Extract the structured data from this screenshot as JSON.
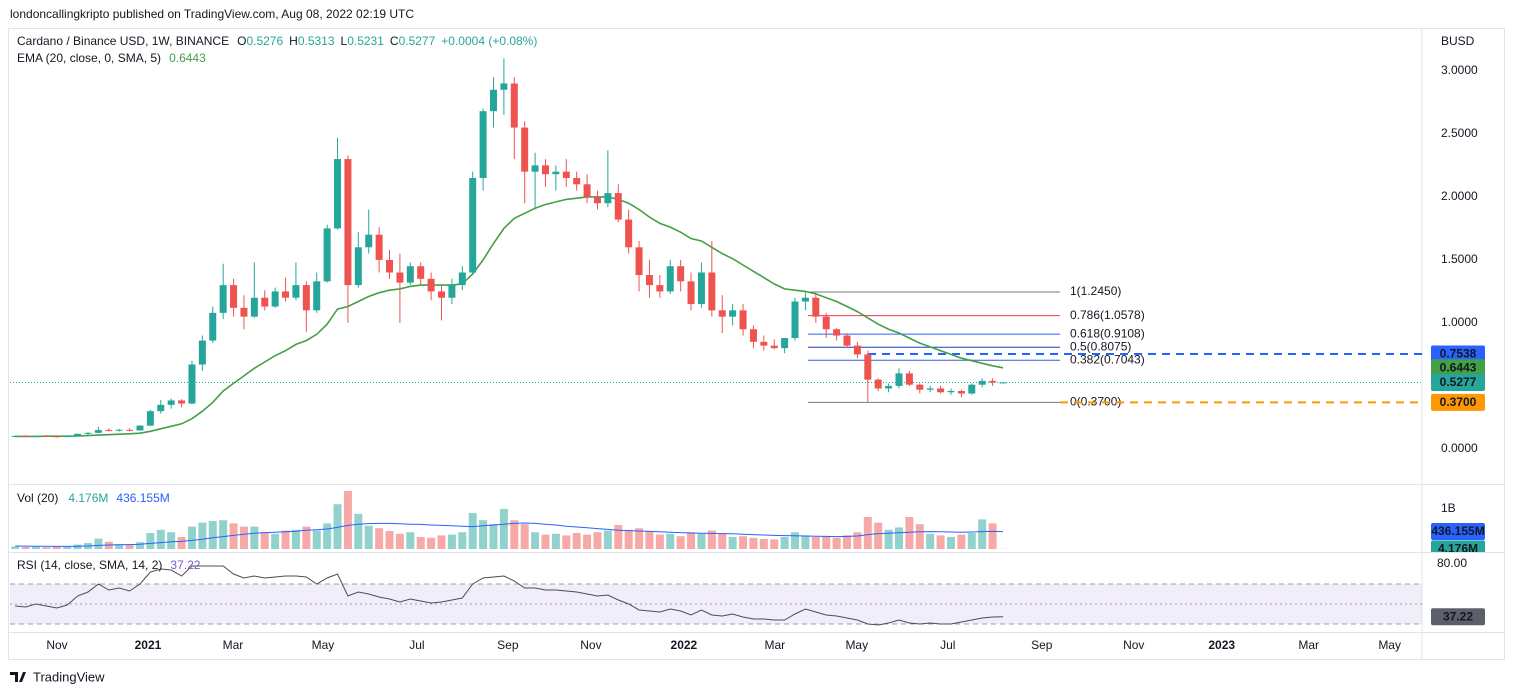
{
  "header": "londoncallingkripto published on TradingView.com, Aug 08, 2022 02:19 UTC",
  "footer": "TradingView",
  "chart_data": {
    "type": "candlestick",
    "legend": {
      "symbol": "Cardano / Binance USD, 1W, BINANCE"
    },
    "ohlc_prefixes": [
      "O",
      "H",
      "L",
      "C"
    ],
    "change": {
      "value": 0.0004,
      "label": "+0.0004 (+0.08%)"
    },
    "currency": "BUSD",
    "up_color": "#26a69a",
    "down_color": "#ef5350",
    "xlim": [
      -0.5,
      135.3
    ],
    "xticks": [
      {
        "value": 4.02,
        "label": "Nov"
      },
      {
        "value": 12.77,
        "label": "2021"
      },
      {
        "value": 20.94,
        "label": "Mar"
      },
      {
        "value": 29.6,
        "label": "May"
      },
      {
        "value": 38.63,
        "label": "Jul"
      },
      {
        "value": 47.38,
        "label": "Sep"
      },
      {
        "value": 55.37,
        "label": "Nov"
      },
      {
        "value": 64.31,
        "label": "2022"
      },
      {
        "value": 73.06,
        "label": "Mar"
      },
      {
        "value": 80.94,
        "label": "May"
      },
      {
        "value": 89.69,
        "label": "Jul"
      },
      {
        "value": 98.73,
        "label": "Sep"
      },
      {
        "value": 107.58,
        "label": "Nov"
      },
      {
        "value": 116.04,
        "label": "2023"
      },
      {
        "value": 124.4,
        "label": "Mar"
      },
      {
        "value": 132.19,
        "label": "May"
      }
    ],
    "ylim": [
      -0.27,
      3.34
    ],
    "yticks": [
      {
        "value": 0,
        "label": "0.0000"
      },
      {
        "value": 1,
        "label": "1.0000"
      },
      {
        "value": 1.5,
        "label": "1.5000"
      },
      {
        "value": 2,
        "label": "2.0000"
      },
      {
        "value": 2.5,
        "label": "2.5000"
      },
      {
        "value": 3,
        "label": "3.0000"
      }
    ],
    "ohlc": [
      [
        0.1,
        0.108,
        0.094,
        0.103
      ],
      [
        0.103,
        0.11,
        0.098,
        0.1
      ],
      [
        0.1,
        0.107,
        0.096,
        0.104
      ],
      [
        0.104,
        0.11,
        0.099,
        0.101
      ],
      [
        0.101,
        0.106,
        0.09,
        0.098
      ],
      [
        0.098,
        0.106,
        0.094,
        0.102
      ],
      [
        0.102,
        0.123,
        0.1,
        0.12
      ],
      [
        0.12,
        0.134,
        0.11,
        0.128
      ],
      [
        0.128,
        0.175,
        0.125,
        0.15
      ],
      [
        0.15,
        0.165,
        0.14,
        0.145
      ],
      [
        0.145,
        0.16,
        0.138,
        0.152
      ],
      [
        0.152,
        0.165,
        0.14,
        0.147
      ],
      [
        0.147,
        0.19,
        0.145,
        0.185
      ],
      [
        0.185,
        0.31,
        0.18,
        0.3
      ],
      [
        0.3,
        0.39,
        0.28,
        0.35
      ],
      [
        0.35,
        0.4,
        0.32,
        0.385
      ],
      [
        0.385,
        0.395,
        0.33,
        0.36
      ],
      [
        0.36,
        0.7,
        0.355,
        0.67
      ],
      [
        0.67,
        0.9,
        0.62,
        0.86
      ],
      [
        0.86,
        1.13,
        0.84,
        1.08
      ],
      [
        1.08,
        1.47,
        1.03,
        1.3
      ],
      [
        1.3,
        1.35,
        1.05,
        1.12
      ],
      [
        1.12,
        1.22,
        0.95,
        1.05
      ],
      [
        1.05,
        1.48,
        1.04,
        1.2
      ],
      [
        1.2,
        1.26,
        1.1,
        1.13
      ],
      [
        1.13,
        1.28,
        1.12,
        1.25
      ],
      [
        1.25,
        1.36,
        1.17,
        1.2
      ],
      [
        1.2,
        1.48,
        1.18,
        1.3
      ],
      [
        1.3,
        1.33,
        0.93,
        1.1
      ],
      [
        1.1,
        1.4,
        1.08,
        1.33
      ],
      [
        1.33,
        1.78,
        1.32,
        1.75
      ],
      [
        1.75,
        2.47,
        1.74,
        2.3
      ],
      [
        2.3,
        2.33,
        1.0,
        1.3
      ],
      [
        1.3,
        1.72,
        1.28,
        1.6
      ],
      [
        1.6,
        1.9,
        1.55,
        1.7
      ],
      [
        1.7,
        1.76,
        1.4,
        1.5
      ],
      [
        1.5,
        1.58,
        1.35,
        1.4
      ],
      [
        1.4,
        1.55,
        1.0,
        1.32
      ],
      [
        1.32,
        1.48,
        1.3,
        1.45
      ],
      [
        1.45,
        1.48,
        1.3,
        1.35
      ],
      [
        1.35,
        1.4,
        1.18,
        1.25
      ],
      [
        1.25,
        1.3,
        1.02,
        1.2
      ],
      [
        1.2,
        1.35,
        1.15,
        1.3
      ],
      [
        1.3,
        1.45,
        1.26,
        1.4
      ],
      [
        1.4,
        2.2,
        1.38,
        2.15
      ],
      [
        2.15,
        2.7,
        2.05,
        2.68
      ],
      [
        2.68,
        2.95,
        2.55,
        2.85
      ],
      [
        2.85,
        3.1,
        2.65,
        2.9
      ],
      [
        2.9,
        2.95,
        2.3,
        2.55
      ],
      [
        2.55,
        2.6,
        1.95,
        2.2
      ],
      [
        2.2,
        2.35,
        1.9,
        2.25
      ],
      [
        2.25,
        2.3,
        2.08,
        2.18
      ],
      [
        2.18,
        2.25,
        2.05,
        2.2
      ],
      [
        2.2,
        2.3,
        2.08,
        2.15
      ],
      [
        2.15,
        2.2,
        2.05,
        2.1
      ],
      [
        2.1,
        2.18,
        1.95,
        2.0
      ],
      [
        2.0,
        2.05,
        1.9,
        1.95
      ],
      [
        1.95,
        2.37,
        1.92,
        2.03
      ],
      [
        2.03,
        2.1,
        1.8,
        1.82
      ],
      [
        1.82,
        1.9,
        1.55,
        1.6
      ],
      [
        1.6,
        1.65,
        1.25,
        1.38
      ],
      [
        1.38,
        1.5,
        1.2,
        1.3
      ],
      [
        1.3,
        1.38,
        1.2,
        1.25
      ],
      [
        1.25,
        1.5,
        1.23,
        1.45
      ],
      [
        1.45,
        1.5,
        1.25,
        1.33
      ],
      [
        1.33,
        1.4,
        1.1,
        1.15
      ],
      [
        1.15,
        1.48,
        1.12,
        1.4
      ],
      [
        1.4,
        1.65,
        1.05,
        1.1
      ],
      [
        1.1,
        1.22,
        0.92,
        1.05
      ],
      [
        1.05,
        1.15,
        0.98,
        1.1
      ],
      [
        1.1,
        1.15,
        0.9,
        0.95
      ],
      [
        0.95,
        0.98,
        0.8,
        0.85
      ],
      [
        0.85,
        0.9,
        0.78,
        0.82
      ],
      [
        0.82,
        0.87,
        0.79,
        0.8
      ],
      [
        0.8,
        0.88,
        0.76,
        0.88
      ],
      [
        0.88,
        1.2,
        0.86,
        1.17
      ],
      [
        1.17,
        1.245,
        1.1,
        1.2
      ],
      [
        1.2,
        1.24,
        1.0,
        1.05
      ],
      [
        1.05,
        1.08,
        0.88,
        0.95
      ],
      [
        0.95,
        0.96,
        0.86,
        0.9
      ],
      [
        0.9,
        0.92,
        0.8,
        0.82
      ],
      [
        0.82,
        0.85,
        0.72,
        0.75
      ],
      [
        0.75,
        0.78,
        0.37,
        0.55
      ],
      [
        0.55,
        0.56,
        0.46,
        0.48
      ],
      [
        0.48,
        0.52,
        0.45,
        0.5
      ],
      [
        0.5,
        0.64,
        0.48,
        0.6
      ],
      [
        0.6,
        0.62,
        0.5,
        0.51
      ],
      [
        0.51,
        0.52,
        0.44,
        0.47
      ],
      [
        0.47,
        0.5,
        0.45,
        0.48
      ],
      [
        0.48,
        0.5,
        0.44,
        0.45
      ],
      [
        0.45,
        0.48,
        0.43,
        0.46
      ],
      [
        0.46,
        0.47,
        0.41,
        0.44
      ],
      [
        0.44,
        0.52,
        0.43,
        0.51
      ],
      [
        0.51,
        0.56,
        0.49,
        0.54
      ],
      [
        0.54,
        0.56,
        0.5,
        0.528
      ],
      [
        0.5276,
        0.5313,
        0.5231,
        0.5277
      ]
    ],
    "ema": {
      "label": "EMA (20, close, 0, SMA, 5)",
      "value": 0.6443,
      "color": "#43a047",
      "values": [
        0.1,
        0.1,
        0.1,
        0.101,
        0.101,
        0.101,
        0.103,
        0.106,
        0.11,
        0.113,
        0.117,
        0.12,
        0.125,
        0.14,
        0.16,
        0.18,
        0.2,
        0.24,
        0.3,
        0.37,
        0.46,
        0.52,
        0.58,
        0.64,
        0.69,
        0.74,
        0.78,
        0.83,
        0.86,
        0.91,
        0.99,
        1.11,
        1.13,
        1.17,
        1.21,
        1.24,
        1.26,
        1.27,
        1.29,
        1.3,
        1.3,
        1.3,
        1.3,
        1.31,
        1.39,
        1.5,
        1.63,
        1.75,
        1.83,
        1.87,
        1.91,
        1.94,
        1.96,
        1.98,
        1.99,
        2.0,
        2.0,
        2.0,
        1.98,
        1.95,
        1.9,
        1.84,
        1.79,
        1.76,
        1.72,
        1.67,
        1.65,
        1.6,
        1.55,
        1.51,
        1.46,
        1.41,
        1.36,
        1.31,
        1.27,
        1.26,
        1.25,
        1.23,
        1.2,
        1.17,
        1.13,
        1.09,
        1.04,
        0.99,
        0.95,
        0.92,
        0.88,
        0.84,
        0.81,
        0.78,
        0.75,
        0.72,
        0.7,
        0.68,
        0.66,
        0.6443
      ]
    },
    "levels": [
      {
        "value": 0.7538,
        "color": "#2962ff"
      },
      {
        "value": 0.37,
        "label": "0.3700",
        "color": "#ff9800"
      }
    ],
    "fib": [
      {
        "label": "1(1.2450)",
        "value": 1.245,
        "color": "#787b86"
      },
      {
        "label": "0.786(1.0578)",
        "value": 1.0578,
        "color": "#f23645"
      },
      {
        "label": "0.618(0.9108)",
        "value": 0.9108,
        "color": "#2962ff"
      },
      {
        "label": "0.5(0.8075)",
        "value": 0.8075,
        "color": "#1e3fbf"
      },
      {
        "label": "0.382(0.7043)",
        "value": 0.7043,
        "color": "#2f5fd6"
      },
      {
        "label": "0(0.3700)",
        "value": 0.37,
        "color": "#787b86"
      }
    ],
    "volume": {
      "label": "Vol (20)",
      "ylim": [
        0,
        1550
      ],
      "yticks": [
        {
          "value": 1000,
          "label": "1B"
        }
      ],
      "last": {
        "value": 4.176,
        "label": "4.176M"
      },
      "values": [
        60,
        50,
        55,
        45,
        60,
        50,
        110,
        150,
        260,
        180,
        120,
        110,
        170,
        400,
        480,
        420,
        300,
        560,
        660,
        700,
        720,
        640,
        560,
        560,
        420,
        380,
        460,
        480,
        560,
        460,
        640,
        1120,
        1450,
        880,
        580,
        520,
        450,
        380,
        420,
        300,
        280,
        340,
        360,
        420,
        900,
        720,
        620,
        1000,
        720,
        620,
        420,
        360,
        380,
        340,
        400,
        360,
        420,
        460,
        600,
        480,
        520,
        440,
        360,
        380,
        320,
        420,
        380,
        460,
        380,
        300,
        320,
        280,
        250,
        240,
        300,
        420,
        340,
        300,
        320,
        280,
        340,
        420,
        800,
        660,
        480,
        540,
        800,
        620,
        380,
        340,
        300,
        360,
        400,
        740,
        640,
        4.176
      ],
      "ma": {
        "value": 436.155,
        "label": "436.155M",
        "color": "#2962ff",
        "values": [
          75,
          72,
          70,
          68,
          66,
          65,
          68,
          75,
          90,
          100,
          105,
          110,
          120,
          140,
          160,
          180,
          190,
          215,
          245,
          280,
          310,
          340,
          370,
          395,
          410,
          420,
          430,
          445,
          470,
          480,
          500,
          540,
          590,
          620,
          635,
          640,
          640,
          630,
          620,
          615,
          600,
          590,
          580,
          570,
          560,
          580,
          600,
          620,
          640,
          650,
          640,
          620,
          600,
          570,
          550,
          530,
          510,
          490,
          470,
          460,
          450,
          440,
          430,
          420,
          410,
          400,
          395,
          390,
          385,
          380,
          370,
          360,
          350,
          340,
          335,
          330,
          325,
          320,
          315,
          310,
          315,
          325,
          360,
          385,
          395,
          405,
          420,
          430,
          435,
          430,
          425,
          420,
          425,
          435,
          440,
          436.155
        ]
      }
    },
    "rsi": {
      "label": "RSI (14, close, SMA, 14, 2)",
      "value": 37.22,
      "color": "#4a4d57",
      "ylim": [
        23,
        96
      ],
      "yticks": [
        {
          "value": 80,
          "label": "80.00"
        }
      ],
      "bands": [
        70,
        50,
        30
      ],
      "values": [
        48,
        47,
        50,
        48,
        46,
        49,
        58,
        62,
        70,
        64,
        66,
        63,
        70,
        82,
        85,
        84,
        78,
        88,
        88,
        88,
        88,
        80,
        76,
        78,
        76,
        77,
        78,
        78,
        77,
        70,
        76,
        80,
        58,
        62,
        60,
        57,
        55,
        52,
        55,
        53,
        51,
        52,
        54,
        56,
        70,
        76,
        77,
        78,
        73,
        66,
        66,
        64,
        64,
        63,
        62,
        60,
        58,
        59,
        54,
        50,
        44,
        43,
        42,
        45,
        43,
        39,
        44,
        39,
        38,
        40,
        37,
        35,
        35,
        34,
        34,
        40,
        45,
        42,
        39,
        38,
        36,
        34,
        30,
        29,
        31,
        34,
        31,
        30,
        31,
        30,
        30,
        32,
        34,
        36,
        37,
        37.22
      ]
    }
  }
}
